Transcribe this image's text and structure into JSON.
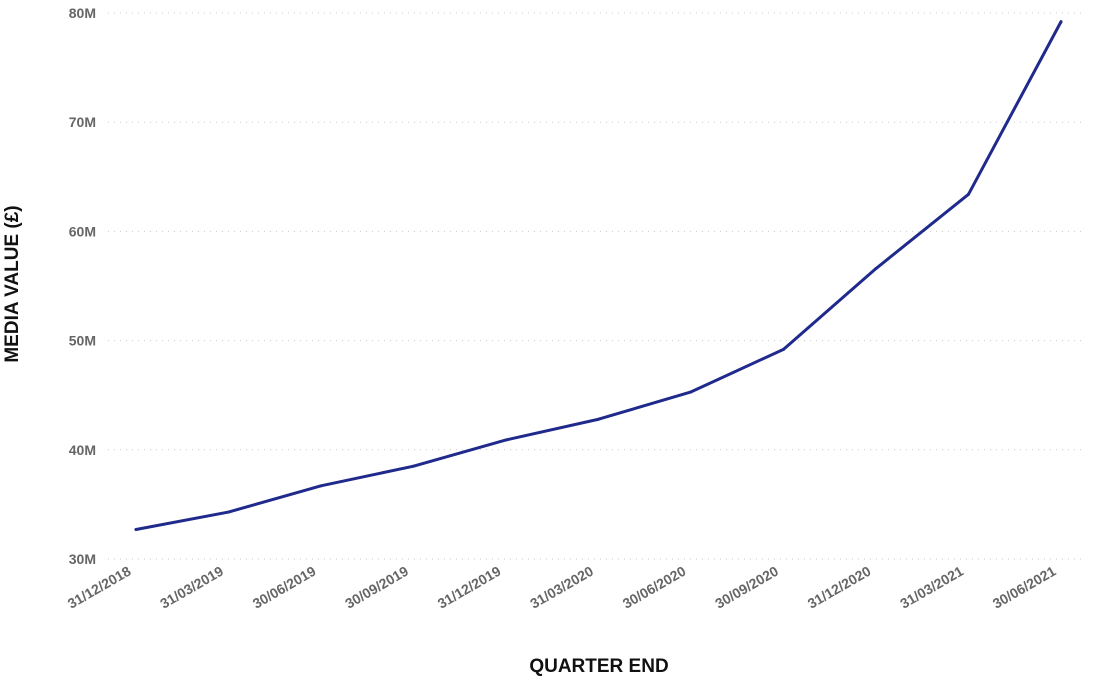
{
  "chart_data": {
    "type": "line",
    "xlabel": "QUARTER END",
    "ylabel": "MEDIA VALUE (£)",
    "ylim": [
      30,
      80
    ],
    "y_unit": "M",
    "y_ticks": [
      {
        "value": 80,
        "label": "80M"
      },
      {
        "value": 70,
        "label": "70M"
      },
      {
        "value": 60,
        "label": "60M"
      },
      {
        "value": 50,
        "label": "50M"
      },
      {
        "value": 40,
        "label": "40M"
      },
      {
        "value": 30,
        "label": "30M"
      }
    ],
    "categories": [
      "31/12/2018",
      "31/03/2019",
      "30/06/2019",
      "30/09/2019",
      "31/12/2019",
      "31/03/2020",
      "30/06/2020",
      "30/09/2020",
      "31/12/2020",
      "31/03/2021",
      "30/06/2021"
    ],
    "series": [
      {
        "values": [
          32.7,
          34.3,
          36.7,
          38.5,
          40.9,
          42.8,
          45.3,
          49.2,
          56.6,
          63.4,
          79.2
        ],
        "color": "#1f2a8c"
      }
    ],
    "grid": true,
    "grid_style": "dotted horizontal",
    "legend": "none"
  }
}
